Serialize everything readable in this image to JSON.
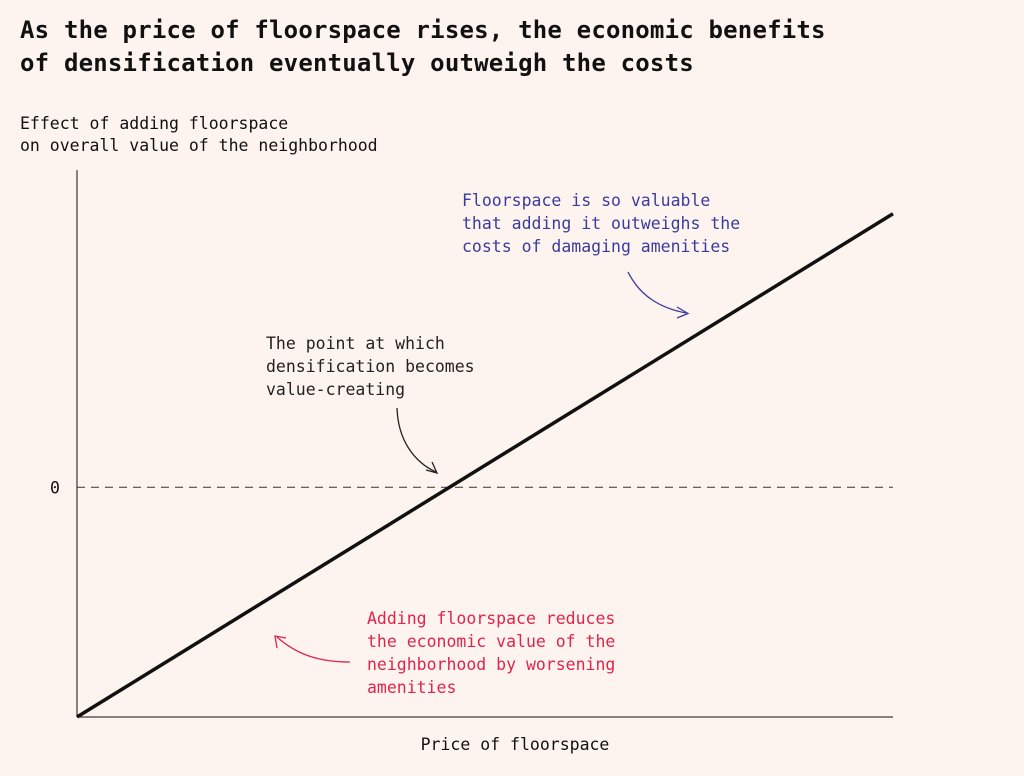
{
  "colors": {
    "background": "#fdf4f0",
    "line": "#111111",
    "positive_annotation": "#3b3b9c",
    "negative_annotation": "#e0244a",
    "neutral_annotation": "#222222"
  },
  "chart_data": {
    "type": "line",
    "title_lines": [
      "As the price of floorspace rises, the economic benefits",
      "of densification eventually outweigh the costs"
    ],
    "ylabel_lines": [
      "Effect of adding floorspace",
      "on overall value of the neighborhood"
    ],
    "xlabel": "Price of floorspace",
    "y_tick_labels": [
      "0"
    ],
    "series": [
      {
        "x": [
          0,
          1
        ],
        "y": [
          -0.42,
          0.5
        ]
      }
    ],
    "xlim": [
      0,
      1
    ],
    "ylim": [
      -0.42,
      0.58
    ],
    "reference_line": {
      "y": 0,
      "style": "dashed"
    },
    "annotations": [
      {
        "id": "positive",
        "lines": [
          "Floorspace is so valuable",
          "that adding it outweighs the",
          "costs of damaging amenities"
        ]
      },
      {
        "id": "crossing",
        "lines": [
          "The point at which",
          "densification becomes",
          "value-creating"
        ]
      },
      {
        "id": "negative",
        "lines": [
          "Adding floorspace reduces",
          "the economic value of the",
          "neighborhood by worsening",
          "amenities"
        ]
      }
    ]
  }
}
